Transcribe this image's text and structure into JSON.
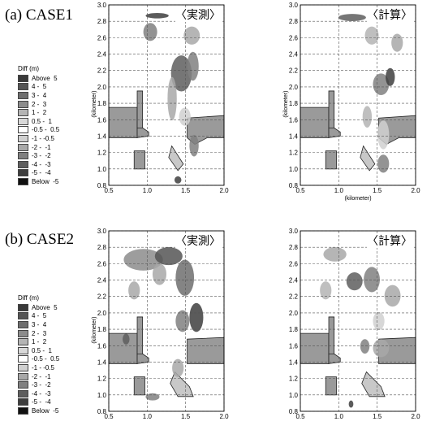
{
  "panels": [
    {
      "label": "(a) CASE1",
      "legend": {
        "title": "Diff (m)",
        "entries": [
          {
            "text": "Above  5",
            "color": "#3a3a3a"
          },
          {
            "text": "4 -  5",
            "color": "#555555"
          },
          {
            "text": "3 -  4",
            "color": "#6e6e6e"
          },
          {
            "text": "2 -  3",
            "color": "#8c8c8c"
          },
          {
            "text": "1 -  2",
            "color": "#b4b4b4"
          },
          {
            "text": "0.5 -  1",
            "color": "#d8d8d8"
          },
          {
            "text": "-0.5 -  0.5",
            "color": "#ffffff"
          },
          {
            "text": "-1 - -0.5",
            "color": "#d0d0d0"
          },
          {
            "text": "-2 -  -1",
            "color": "#a8a8a8"
          },
          {
            "text": "-3 -  -2",
            "color": "#808080"
          },
          {
            "text": "-4 -  -3",
            "color": "#5e5e5e"
          },
          {
            "text": "-5 -  -4",
            "color": "#3e3e3e"
          },
          {
            "text": "Below  -5",
            "color": "#111111"
          }
        ]
      },
      "maps": [
        {
          "title": "〈実測〉",
          "ylabel": "(kilometer)",
          "xlabel": "",
          "variant": "obs1"
        },
        {
          "title": "〈計算〉",
          "ylabel": "(kilometer)",
          "xlabel": "(kilometer)",
          "variant": "calc1"
        }
      ]
    },
    {
      "label": "(b) CASE2",
      "legend": {
        "title": "Diff (m)",
        "entries": [
          {
            "text": "Above  5",
            "color": "#3a3a3a"
          },
          {
            "text": "4 -  5",
            "color": "#555555"
          },
          {
            "text": "3 -  4",
            "color": "#6e6e6e"
          },
          {
            "text": "2 -  3",
            "color": "#8c8c8c"
          },
          {
            "text": "1 -  2",
            "color": "#b4b4b4"
          },
          {
            "text": "0.5 -  1",
            "color": "#d8d8d8"
          },
          {
            "text": "-0.5 -  0.5",
            "color": "#ffffff"
          },
          {
            "text": "-1 - -0.5",
            "color": "#d0d0d0"
          },
          {
            "text": "-2 -  -1",
            "color": "#a8a8a8"
          },
          {
            "text": "-3 -  -2",
            "color": "#808080"
          },
          {
            "text": "-4 -  -3",
            "color": "#5e5e5e"
          },
          {
            "text": "-5 -  -4",
            "color": "#3e3e3e"
          },
          {
            "text": "Below  -5",
            "color": "#111111"
          }
        ]
      },
      "maps": [
        {
          "title": "〈実測〉",
          "ylabel": "(kilometer)",
          "xlabel": "",
          "variant": "obs2"
        },
        {
          "title": "〈計算〉",
          "ylabel": "",
          "xlabel": "",
          "variant": "calc2"
        }
      ]
    }
  ],
  "axes": {
    "x_ticks": [
      "0.5",
      "1.0",
      "1.5",
      "2.0"
    ],
    "y_ticks": [
      "0.8",
      "1.0",
      "1.2",
      "1.4",
      "1.6",
      "1.8",
      "2.0",
      "2.2",
      "2.4",
      "2.6",
      "2.8",
      "3.0"
    ],
    "xlim": [
      0.5,
      2.0
    ],
    "ylim": [
      0.8,
      3.0
    ],
    "land_color": "#9a9a9a"
  }
}
